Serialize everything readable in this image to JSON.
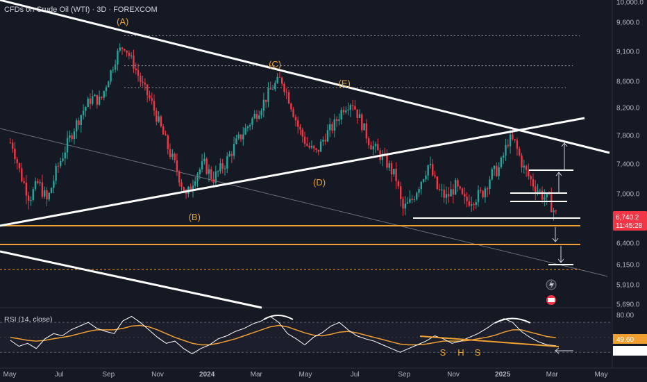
{
  "header": {
    "title": "CFDs on Crude Oil (WTI) · 3D · FOREXCOM"
  },
  "rsi_panel": {
    "title": "RSI (14, close)"
  },
  "price_badge": {
    "price": "6,740.2",
    "countdown": "11:45:28",
    "color": "#f23645"
  },
  "colors": {
    "background": "#151924",
    "up": "#26a69a",
    "down": "#f23645",
    "orange": "#f0a030",
    "white": "#ffffff",
    "rsi_line": "#ffffff",
    "rsi_ma": "#f0a030"
  },
  "chart_data": [
    {
      "type": "candlestick",
      "title": "CFDs on Crude Oil (WTI) · 3D · FOREXCOM",
      "x_tick_labels": [
        "May",
        "Jul",
        "Sep",
        "Nov",
        "2024",
        "Mar",
        "May",
        "Jul",
        "Sep",
        "Nov",
        "2025",
        "Mar",
        "May"
      ],
      "x_tick_years": [
        2023.333,
        2023.5,
        2023.667,
        2023.833,
        2024.0,
        2024.167,
        2024.333,
        2024.5,
        2024.667,
        2024.833,
        2025.0,
        2025.167,
        2025.333
      ],
      "y_tick_labels": [
        "10,000.0",
        "9,600.0",
        "9,100.0",
        "8,600.0",
        "8,200.0",
        "7,800.0",
        "7,400.0",
        "7,000.0",
        "6,400.0",
        "6,150.0",
        "5,910.0",
        "5,690.0"
      ],
      "y_ticks": [
        10000,
        9600,
        9100,
        8600,
        8200,
        7800,
        7400,
        7000,
        6400,
        6150,
        5910,
        5690
      ],
      "ylim": [
        5650,
        10050
      ],
      "price_path": [
        [
          2023.34,
          7700
        ],
        [
          2023.37,
          7250
        ],
        [
          2023.4,
          6950
        ],
        [
          2023.43,
          7150
        ],
        [
          2023.46,
          6900
        ],
        [
          2023.49,
          7300
        ],
        [
          2023.52,
          7600
        ],
        [
          2023.55,
          7900
        ],
        [
          2023.58,
          8150
        ],
        [
          2023.61,
          8350
        ],
        [
          2023.64,
          8300
        ],
        [
          2023.67,
          8700
        ],
        [
          2023.7,
          9100
        ],
        [
          2023.72,
          9200
        ],
        [
          2023.75,
          8900
        ],
        [
          2023.78,
          8550
        ],
        [
          2023.81,
          8300
        ],
        [
          2023.84,
          7950
        ],
        [
          2023.87,
          7600
        ],
        [
          2023.9,
          7300
        ],
        [
          2023.93,
          6950
        ],
        [
          2023.96,
          7250
        ],
        [
          2023.99,
          7400
        ],
        [
          2024.02,
          7200
        ],
        [
          2024.06,
          7400
        ],
        [
          2024.1,
          7700
        ],
        [
          2024.14,
          7950
        ],
        [
          2024.18,
          8200
        ],
        [
          2024.22,
          8500
        ],
        [
          2024.25,
          8650
        ],
        [
          2024.28,
          8300
        ],
        [
          2024.31,
          7900
        ],
        [
          2024.34,
          7650
        ],
        [
          2024.37,
          7550
        ],
        [
          2024.4,
          7800
        ],
        [
          2024.43,
          7950
        ],
        [
          2024.46,
          8200
        ],
        [
          2024.49,
          8300
        ],
        [
          2024.52,
          8000
        ],
        [
          2024.55,
          7700
        ],
        [
          2024.58,
          7550
        ],
        [
          2024.61,
          7400
        ],
        [
          2024.64,
          7200
        ],
        [
          2024.66,
          6800
        ],
        [
          2024.69,
          6900
        ],
        [
          2024.72,
          7150
        ],
        [
          2024.75,
          7400
        ],
        [
          2024.78,
          7050
        ],
        [
          2024.81,
          6950
        ],
        [
          2024.84,
          7100
        ],
        [
          2024.87,
          6900
        ],
        [
          2024.9,
          6950
        ],
        [
          2024.93,
          7000
        ],
        [
          2024.96,
          7250
        ],
        [
          2024.99,
          7350
        ],
        [
          2025.02,
          7750
        ],
        [
          2025.04,
          7700
        ],
        [
          2025.07,
          7350
        ],
        [
          2025.1,
          7150
        ],
        [
          2025.13,
          7000
        ],
        [
          2025.16,
          6900
        ],
        [
          2025.18,
          6740
        ]
      ],
      "last_price": 6740.2,
      "annotations": [
        {
          "text": "(A)",
          "x": 2023.715,
          "y": 9560
        },
        {
          "text": "(B)",
          "x": 2023.958,
          "y": 6680
        },
        {
          "text": "(C)",
          "x": 2024.23,
          "y": 8830
        },
        {
          "text": "(D)",
          "x": 2024.38,
          "y": 7110
        },
        {
          "text": "(E)",
          "x": 2024.465,
          "y": 8520
        }
      ],
      "horizontal_levels": [
        6690,
        6400,
        6110
      ],
      "dotted_levels": [
        9370,
        8860,
        8500
      ],
      "target_levels": [
        7320,
        7020,
        6900,
        6740,
        6160
      ]
    },
    {
      "type": "line",
      "title": "RSI (14, close)",
      "series": [
        {
          "name": "RSI (14, close)",
          "last_value": 38.73
        },
        {
          "name": "MA",
          "last_value": 49.6
        }
      ],
      "y_tick_labels": [
        "80.00"
      ],
      "y_ticks": [
        80
      ],
      "pattern_labels": [
        "S",
        "H",
        "S"
      ],
      "rsi_values": [
        46,
        38,
        42,
        35,
        48,
        55,
        52,
        60,
        65,
        70,
        62,
        58,
        55,
        72,
        78,
        70,
        60,
        50,
        42,
        45,
        35,
        28,
        35,
        40,
        48,
        52,
        58,
        62,
        68,
        72,
        78,
        70,
        55,
        48,
        40,
        50,
        56,
        65,
        70,
        60,
        52,
        48,
        45,
        40,
        35,
        30,
        35,
        40,
        45,
        52,
        48,
        42,
        45,
        50,
        55,
        62,
        70,
        75,
        70,
        58,
        50,
        44,
        40,
        38.73
      ],
      "ma_values": [
        50,
        48,
        46,
        45,
        46,
        48,
        50,
        52,
        55,
        58,
        60,
        60,
        60,
        62,
        65,
        66,
        64,
        60,
        55,
        50,
        46,
        42,
        40,
        40,
        42,
        45,
        48,
        52,
        56,
        60,
        64,
        66,
        64,
        60,
        56,
        53,
        52,
        54,
        57,
        58,
        56,
        53,
        50,
        47,
        44,
        41,
        40,
        40,
        41,
        43,
        45,
        45,
        45,
        46,
        48,
        50,
        53,
        57,
        60,
        60,
        57,
        54,
        51,
        49.6
      ]
    }
  ]
}
